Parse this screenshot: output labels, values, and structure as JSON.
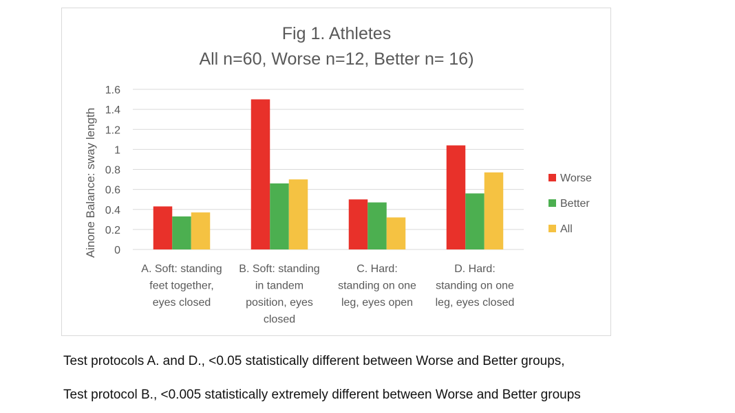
{
  "chart_data": {
    "type": "bar",
    "title": "Fig 1. Athletes",
    "subtitle": "All n=60, Worse n=12, Better n= 16)",
    "ylabel": "Ainone Balance: sway length",
    "xlabel": "",
    "ylim": [
      0,
      1.6
    ],
    "y_ticks": [
      "0",
      "0.2",
      "0.4",
      "0.6",
      "0.8",
      "1",
      "1.2",
      "1.4",
      "1.6"
    ],
    "grid": true,
    "legend_position": "right",
    "categories": [
      [
        "A. Soft: standing",
        "feet together,",
        "eyes closed"
      ],
      [
        "B. Soft: standing",
        "in tandem",
        "position, eyes",
        "closed"
      ],
      [
        "C. Hard:",
        "standing on one",
        "leg, eyes open"
      ],
      [
        "D. Hard:",
        "standing on one",
        "leg, eyes closed"
      ]
    ],
    "series": [
      {
        "name": "Worse",
        "color": "#e8312a",
        "values": [
          0.43,
          1.5,
          0.5,
          1.04
        ]
      },
      {
        "name": "Better",
        "color": "#4caf50",
        "values": [
          0.33,
          0.66,
          0.47,
          0.56
        ]
      },
      {
        "name": "All",
        "color": "#f5c242",
        "values": [
          0.37,
          0.7,
          0.32,
          0.77
        ]
      }
    ]
  },
  "captions": {
    "line1": "Test protocols A. and D., <0.05 statistically different between Worse and Better groups,",
    "line2": "Test protocol B., <0.005 statistically extremely different between Worse and Better groups"
  }
}
